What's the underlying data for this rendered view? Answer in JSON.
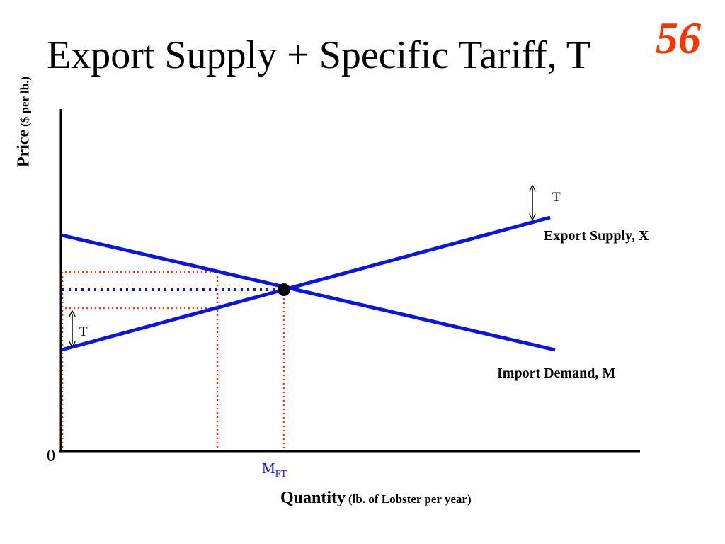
{
  "title": "Export Supply + Specific Tariff, T",
  "slide_number": "56",
  "y_axis": {
    "label": "Price",
    "unit": "($ per lb.)"
  },
  "x_axis": {
    "label": "Quantity",
    "unit": "(lb. of Lobster per year)",
    "origin": "0",
    "marker": {
      "base": "M",
      "sub": "FT"
    }
  },
  "curves": {
    "export_supply": "Export Supply, X",
    "import_demand": "Import Demand, M"
  },
  "tariff_labels": {
    "top": "T",
    "left": "T"
  },
  "colors": {
    "curve": "#0a14e6",
    "guide_red": "#ff3300",
    "guide_blue": "#0a14e6",
    "axis": "#000000",
    "title_number": "#ff3300"
  }
}
